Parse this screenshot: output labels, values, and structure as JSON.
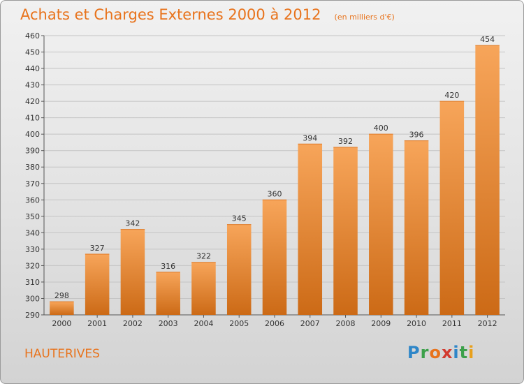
{
  "header": {
    "title": "Achats et Charges Externes 2000 à 2012",
    "subtitle": "(en milliers d'€)"
  },
  "footer": {
    "commune": "HAUTERIVES",
    "logo_letters": [
      "P",
      "r",
      "o",
      "x",
      "i",
      "t",
      "i"
    ]
  },
  "colors": {
    "accent": "#e8731c",
    "bar_top": "#f7a55a",
    "bar_bottom": "#cc6a16"
  },
  "chart_data": {
    "type": "bar",
    "categories": [
      "2000",
      "2001",
      "2002",
      "2003",
      "2004",
      "2005",
      "2006",
      "2007",
      "2008",
      "2009",
      "2010",
      "2011",
      "2012"
    ],
    "values": [
      298,
      327,
      342,
      316,
      322,
      345,
      360,
      394,
      392,
      400,
      396,
      420,
      454
    ],
    "title": "Achats et Charges Externes 2000 à 2012",
    "xlabel": "",
    "ylabel": "",
    "ylim": [
      290,
      460
    ],
    "yticks": [
      290,
      300,
      310,
      320,
      330,
      340,
      350,
      360,
      370,
      380,
      390,
      400,
      410,
      420,
      430,
      440,
      450,
      460
    ],
    "grid": true
  }
}
